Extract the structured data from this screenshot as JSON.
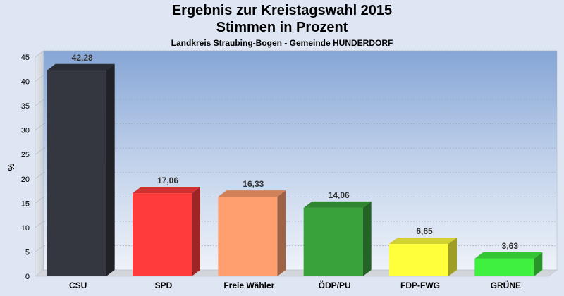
{
  "chart_data": {
    "type": "bar",
    "title": "Ergebnis zur Kreistagswahl 2015",
    "subtitle": "Stimmen in Prozent",
    "caption": "Landkreis Straubing-Bogen - Gemeinde HUNDERDORF",
    "ylabel": "%",
    "ylim": [
      0,
      45
    ],
    "yticks": [
      0,
      5,
      10,
      15,
      20,
      25,
      30,
      35,
      40,
      45
    ],
    "grid": true,
    "categories": [
      "CSU",
      "SPD",
      "Freie Wähler",
      "ÖDP/PU",
      "FDP-FWG",
      "GRÜNE"
    ],
    "values": [
      42.28,
      17.06,
      16.33,
      14.06,
      6.65,
      3.63
    ],
    "value_labels": [
      "42,28",
      "17,06",
      "16,33",
      "14,06",
      "6,65",
      "3,63"
    ],
    "colors": [
      "#34373f",
      "#ff3b3b",
      "#ff9e6e",
      "#39a23a",
      "#ffff3c",
      "#3ff03f"
    ]
  }
}
